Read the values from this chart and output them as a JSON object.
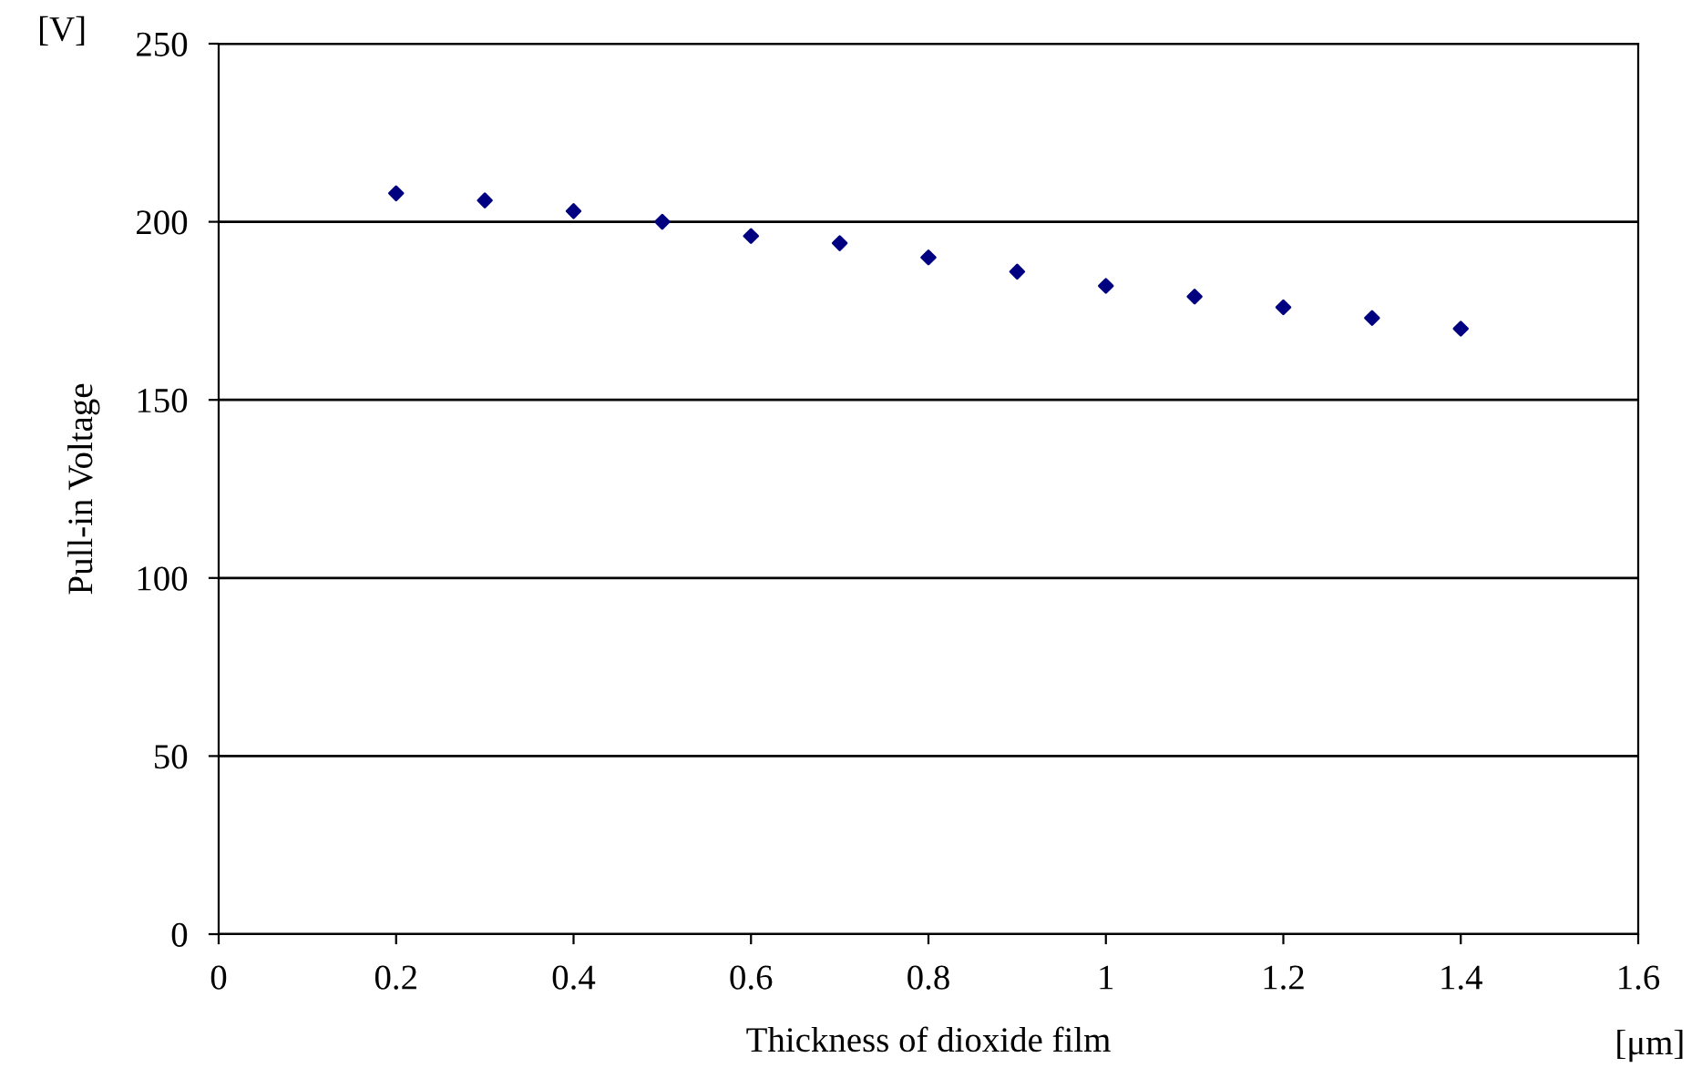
{
  "chart_data": {
    "type": "scatter",
    "xlabel": "Thickness of dioxide film",
    "ylabel": "Pull-in Voltage",
    "annotations": [
      "[V]",
      "[μm]"
    ],
    "x": [
      0.2,
      0.3,
      0.4,
      0.5,
      0.6,
      0.7,
      0.8,
      0.9,
      1.0,
      1.1,
      1.2,
      1.3,
      1.4
    ],
    "series": [
      {
        "color": "#000080",
        "values": [
          208,
          206,
          203,
          200,
          196,
          194,
          190,
          186,
          182,
          179,
          176,
          173,
          170
        ]
      }
    ],
    "xlim": [
      0,
      1.6
    ],
    "xticks": [
      0,
      0.2,
      0.4,
      0.6,
      0.8,
      1,
      1.2,
      1.4,
      1.6
    ],
    "ylim": [
      0,
      250
    ],
    "yticks": [
      0,
      50,
      100,
      150,
      200,
      250
    ],
    "grid": "y",
    "marker": "diamond",
    "legend": false
  }
}
